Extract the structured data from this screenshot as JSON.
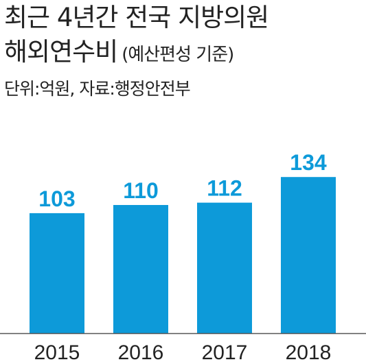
{
  "title": "최근 4년간 전국 지방의원",
  "title_line2": "해외연수비",
  "subtitle": "(예산편성 기준)",
  "source": "단위:억원, 자료:행정안전부",
  "colors": {
    "bar": "#0d9ad9",
    "label": "#0d9ad9",
    "axis": "#555555",
    "tick": "#222222"
  },
  "chart_data": {
    "type": "bar",
    "title": "최근 4년간 전국 지방의원 해외연수비",
    "subtitle": "(예산편성 기준)",
    "unit": "억원",
    "categories": [
      "2015",
      "2016",
      "2017",
      "2018"
    ],
    "values": [
      103,
      110,
      112,
      134
    ],
    "data_labels": [
      "103",
      "110",
      "112",
      "134"
    ],
    "ylim": [
      0,
      150
    ],
    "grid": false,
    "legend": "none",
    "xlabel": "",
    "ylabel": ""
  }
}
